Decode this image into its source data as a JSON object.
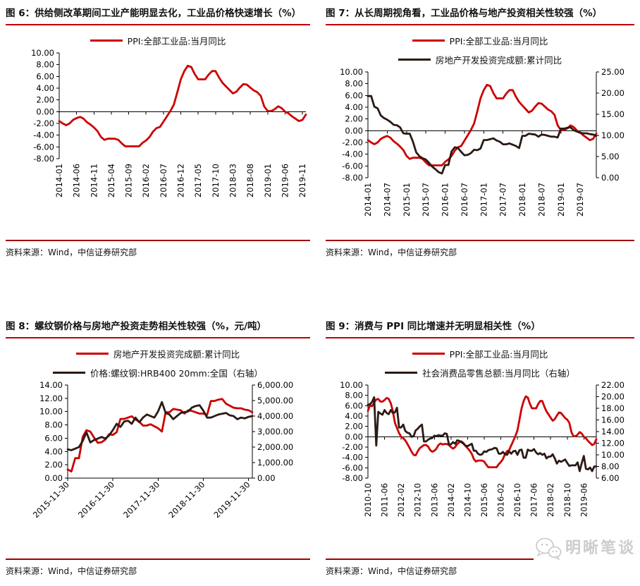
{
  "colors": {
    "series_red": "#cc0000",
    "series_black": "#2b1a14",
    "title_rule_red": "#c00000",
    "source_rule_dark_red": "#a00000",
    "axis_black": "#000000",
    "watermark_gray": "#cccccc"
  },
  "source_label": "资料来源：Wind，中信证券研究部",
  "watermark": {
    "icon": "wechat-chat-bubbles-icon",
    "text": "明晰笔谈"
  },
  "chart_data": [
    {
      "id": "fig6",
      "type": "line",
      "title": "图 6：供给侧改革期间工业产能明显去化，工业品价格快速增长（%）",
      "legend": [
        {
          "label": "PPI:全部工业品:当月同比",
          "color": "#cc0000"
        }
      ],
      "left_axis": {
        "min": -8,
        "max": 10,
        "tick_labels": [
          "10.00",
          "8.00",
          "6.00",
          "4.00",
          "2.00",
          "0.00",
          "-2.00",
          "-4.00",
          "-6.00",
          "-8.00"
        ]
      },
      "right_axis": null,
      "x_axis": {
        "start": "2014-01",
        "end": "2019-12",
        "freq": "monthly",
        "label_rotation": -90,
        "tick_indices": [
          0,
          5,
          10,
          15,
          20,
          25,
          30,
          35,
          40,
          45,
          50,
          55,
          60,
          65,
          70
        ],
        "tick_labels": [
          "2014-01",
          "2014-06",
          "2014-11",
          "2015-04",
          "2015-09",
          "2016-02",
          "2016-07",
          "2016-12",
          "2017-05",
          "2017-10",
          "2018-03",
          "2018-08",
          "2019-01",
          "2019-06",
          "2019-11"
        ]
      },
      "series": [
        {
          "name": "PPI:全部工业品:当月同比",
          "axis": "left",
          "color": "#cc0000",
          "values": [
            -1.6,
            -2.0,
            -2.3,
            -2.0,
            -1.4,
            -1.1,
            -0.9,
            -1.2,
            -1.8,
            -2.2,
            -2.7,
            -3.3,
            -4.3,
            -4.8,
            -4.6,
            -4.6,
            -4.6,
            -4.8,
            -5.4,
            -5.9,
            -5.9,
            -5.9,
            -5.9,
            -5.9,
            -5.3,
            -4.9,
            -4.3,
            -3.4,
            -2.8,
            -2.6,
            -1.7,
            -0.8,
            0.1,
            1.2,
            3.3,
            5.5,
            6.9,
            7.8,
            7.6,
            6.4,
            5.5,
            5.5,
            5.5,
            6.3,
            6.9,
            6.9,
            5.8,
            4.9,
            4.3,
            3.7,
            3.1,
            3.4,
            4.1,
            4.7,
            4.6,
            4.1,
            3.6,
            3.3,
            2.7,
            0.9,
            0.1,
            0.1,
            0.4,
            0.9,
            0.6,
            0.0,
            -0.3,
            -0.8,
            -1.2,
            -1.6,
            -1.4,
            -0.5
          ]
        }
      ]
    },
    {
      "id": "fig7",
      "type": "line",
      "title": "图 7：从长周期视角看，工业品价格与地产投资相关性较强（%）",
      "legend": [
        {
          "label": "PPI:全部工业品:当月同比",
          "color": "#cc0000"
        },
        {
          "label": "房地产开发投资完成额:累计同比",
          "color": "#2b1a14"
        }
      ],
      "left_axis": {
        "min": -8,
        "max": 10,
        "tick_labels": [
          "10.00",
          "8.00",
          "6.00",
          "4.00",
          "2.00",
          "0.00",
          "-2.00",
          "-4.00",
          "-6.00",
          "-8.00"
        ]
      },
      "right_axis": {
        "min": 0,
        "max": 25,
        "tick_labels": [
          "25.00",
          "20.00",
          "15.00",
          "10.00",
          "5.00",
          "0.00"
        ]
      },
      "x_axis": {
        "start": "2014-01",
        "end": "2019-12",
        "freq": "monthly",
        "label_rotation": -90,
        "tick_indices": [
          0,
          6,
          12,
          18,
          24,
          30,
          36,
          42,
          48,
          54,
          60,
          66
        ],
        "tick_labels": [
          "2014-01",
          "2014-07",
          "2015-01",
          "2015-07",
          "2016-01",
          "2016-07",
          "2017-01",
          "2017-07",
          "2018-01",
          "2018-07",
          "2019-01",
          "2019-07"
        ]
      },
      "series": [
        {
          "name": "PPI:全部工业品:当月同比",
          "axis": "left",
          "color": "#cc0000",
          "values": [
            -1.6,
            -2.0,
            -2.3,
            -2.0,
            -1.4,
            -1.1,
            -0.9,
            -1.2,
            -1.8,
            -2.2,
            -2.7,
            -3.3,
            -4.3,
            -4.8,
            -4.6,
            -4.6,
            -4.6,
            -4.8,
            -5.4,
            -5.9,
            -5.9,
            -5.9,
            -5.9,
            -5.9,
            -5.3,
            -4.9,
            -4.3,
            -3.4,
            -2.8,
            -2.6,
            -1.7,
            -0.8,
            0.1,
            1.2,
            3.3,
            5.5,
            6.9,
            7.8,
            7.6,
            6.4,
            5.5,
            5.5,
            5.5,
            6.3,
            6.9,
            6.9,
            5.8,
            4.9,
            4.3,
            3.7,
            3.1,
            3.4,
            4.1,
            4.7,
            4.6,
            4.1,
            3.6,
            3.3,
            2.7,
            0.9,
            0.1,
            0.1,
            0.4,
            0.9,
            0.6,
            0.0,
            -0.3,
            -0.8,
            -1.2,
            -1.6,
            -1.4,
            -0.5
          ]
        },
        {
          "name": "房地产开发投资完成额:累计同比",
          "axis": "right",
          "color": "#2b1a14",
          "values": [
            19.3,
            19.3,
            16.8,
            16.4,
            14.7,
            14.1,
            13.7,
            13.2,
            12.5,
            12.4,
            11.9,
            10.5,
            10.4,
            10.4,
            8.5,
            6.0,
            5.1,
            4.6,
            4.3,
            3.5,
            2.6,
            2.0,
            1.3,
            1.0,
            3.0,
            3.0,
            6.2,
            7.2,
            7.0,
            6.1,
            5.3,
            5.4,
            5.8,
            6.6,
            6.5,
            6.9,
            8.9,
            8.9,
            9.1,
            9.3,
            8.8,
            8.5,
            7.9,
            7.9,
            8.1,
            7.8,
            7.5,
            7.0,
            9.9,
            9.9,
            10.4,
            10.3,
            10.2,
            9.7,
            10.2,
            10.1,
            9.9,
            9.7,
            9.7,
            9.5,
            11.6,
            11.6,
            11.8,
            11.9,
            11.2,
            10.9,
            10.6,
            10.5,
            10.5,
            10.3,
            10.2,
            9.9
          ]
        }
      ]
    },
    {
      "id": "fig8",
      "type": "line",
      "title": "图 8：螺纹钢价格与房地产投资走势相关性较强（%，元/吨）",
      "legend": [
        {
          "label": "房地产开发投资完成额:累计同比",
          "color": "#cc0000"
        },
        {
          "label": "价格:螺纹钢:HRB400 20mm:全国（右轴）",
          "color": "#2b1a14"
        }
      ],
      "left_axis": {
        "min": 0,
        "max": 14,
        "tick_labels": [
          "14.00",
          "12.00",
          "10.00",
          "8.00",
          "6.00",
          "4.00",
          "2.00",
          "0.00"
        ]
      },
      "right_axis": {
        "min": 0,
        "max": 6000,
        "tick_labels": [
          "6,000.00",
          "5,000.00",
          "4,000.00",
          "3,000.00",
          "2,000.00",
          "1,000.00",
          "0.00"
        ]
      },
      "x_axis": {
        "start": "2015-11-30",
        "end": "2019-12-31",
        "freq": "monthly",
        "label_rotation": -45,
        "tick_indices": [
          0,
          12,
          24,
          36,
          48
        ],
        "tick_labels": [
          "2015-11-30",
          "2016-11-30",
          "2017-11-30",
          "2018-11-30",
          "2019-11-30"
        ]
      },
      "series": [
        {
          "name": "房地产开发投资完成额:累计同比",
          "axis": "left",
          "color": "#cc0000",
          "values": [
            1.3,
            1.0,
            3.0,
            3.0,
            6.2,
            7.2,
            7.0,
            6.1,
            5.3,
            5.4,
            5.8,
            6.6,
            6.5,
            6.9,
            8.9,
            8.9,
            9.1,
            9.3,
            8.8,
            8.5,
            7.9,
            7.9,
            8.1,
            7.8,
            7.5,
            7.0,
            9.9,
            9.9,
            10.4,
            10.3,
            10.2,
            9.7,
            10.2,
            10.1,
            9.9,
            9.7,
            9.7,
            9.5,
            11.6,
            11.6,
            11.8,
            11.9,
            11.2,
            10.9,
            10.6,
            10.5,
            10.5,
            10.3,
            10.2,
            9.9
          ]
        },
        {
          "name": "价格:螺纹钢:HRB400 20mm:全国（右轴）",
          "axis": "right",
          "color": "#2b1a14",
          "values": [
            1850,
            1800,
            1900,
            2000,
            2400,
            2950,
            2300,
            2450,
            2550,
            2650,
            2550,
            2750,
            3100,
            3500,
            3300,
            3650,
            3700,
            3500,
            3900,
            3600,
            3900,
            4100,
            4000,
            3900,
            4300,
            4900,
            4200,
            4100,
            3800,
            4000,
            4200,
            4250,
            4300,
            4550,
            4650,
            4700,
            4350,
            3900,
            3900,
            4000,
            4100,
            4150,
            4200,
            4050,
            4000,
            3800,
            3900,
            3850,
            3950,
            4000
          ]
        }
      ]
    },
    {
      "id": "fig9",
      "type": "line",
      "title": "图 9：消费与 PPI 同比增速并无明显相关性（%）",
      "legend": [
        {
          "label": "PPI:全部工业品:当月同比",
          "color": "#cc0000"
        },
        {
          "label": "社会消费品零售总额:当月同比（右轴）",
          "color": "#2b1a14"
        }
      ],
      "left_axis": {
        "min": -8,
        "max": 10,
        "tick_labels": [
          "10.00",
          "8.00",
          "6.00",
          "4.00",
          "2.00",
          "0.00",
          "-2.00",
          "-4.00",
          "-6.00",
          "-8.00"
        ]
      },
      "right_axis": {
        "min": 6,
        "max": 22,
        "tick_labels": [
          "22.00",
          "20.00",
          "18.00",
          "16.00",
          "14.00",
          "12.00",
          "10.00",
          "8.00",
          "6.00"
        ]
      },
      "x_axis": {
        "start": "2010-10",
        "end": "2019-12",
        "freq": "monthly",
        "label_rotation": -90,
        "tick_indices": [
          0,
          8,
          16,
          24,
          32,
          40,
          48,
          56,
          64,
          72,
          80,
          88,
          96,
          104
        ],
        "tick_labels": [
          "2010-10",
          "2011-06",
          "2012-02",
          "2012-10",
          "2013-06",
          "2014-02",
          "2014-10",
          "2015-06",
          "2016-02",
          "2016-10",
          "2017-06",
          "2018-02",
          "2018-10",
          "2019-06"
        ]
      },
      "series": [
        {
          "name": "PPI:全部工业品:当月同比",
          "axis": "left",
          "color": "#cc0000",
          "values": [
            5.0,
            6.1,
            5.9,
            6.6,
            7.2,
            7.3,
            6.8,
            6.8,
            7.1,
            7.5,
            7.3,
            6.5,
            5.0,
            2.7,
            1.7,
            0.7,
            0.0,
            -0.3,
            -0.7,
            -1.4,
            -2.1,
            -2.9,
            -3.5,
            -3.6,
            -2.8,
            -2.2,
            -1.9,
            -1.6,
            -1.6,
            -1.9,
            -2.6,
            -2.9,
            -2.7,
            -2.3,
            -1.6,
            -1.3,
            -1.5,
            -1.4,
            -1.4,
            -1.6,
            -2.0,
            -2.3,
            -2.0,
            -1.4,
            -1.1,
            -0.9,
            -1.2,
            -1.8,
            -2.2,
            -2.7,
            -3.3,
            -4.3,
            -4.8,
            -4.6,
            -4.6,
            -4.6,
            -4.8,
            -5.4,
            -5.9,
            -5.9,
            -5.9,
            -5.9,
            -5.9,
            -5.3,
            -4.9,
            -4.3,
            -3.4,
            -2.8,
            -2.6,
            -1.7,
            -0.8,
            0.1,
            1.2,
            3.3,
            5.5,
            6.9,
            7.8,
            7.6,
            6.4,
            5.5,
            5.5,
            5.5,
            6.3,
            6.9,
            6.9,
            5.8,
            4.9,
            4.3,
            3.7,
            3.1,
            3.4,
            4.1,
            4.7,
            4.6,
            4.1,
            3.6,
            3.3,
            2.7,
            0.9,
            0.1,
            0.1,
            0.4,
            0.9,
            0.6,
            0.0,
            -0.3,
            -0.8,
            -1.2,
            -1.6,
            -1.4,
            -0.5
          ]
        },
        {
          "name": "社会消费品零售总额:当月同比（右轴）",
          "axis": "right",
          "color": "#2b1a14",
          "values": [
            18.6,
            18.7,
            19.1,
            19.9,
            11.6,
            17.4,
            17.1,
            16.9,
            17.7,
            17.2,
            17.0,
            17.7,
            17.2,
            17.3,
            18.1,
            14.7,
            14.7,
            15.2,
            14.1,
            13.8,
            13.7,
            13.1,
            13.2,
            14.2,
            14.5,
            14.9,
            15.2,
            12.3,
            12.3,
            12.6,
            12.8,
            12.9,
            13.3,
            13.2,
            13.4,
            13.3,
            13.3,
            13.7,
            13.6,
            11.8,
            11.8,
            12.2,
            11.9,
            12.5,
            12.4,
            12.2,
            11.9,
            11.6,
            11.5,
            11.7,
            11.9,
            10.7,
            10.7,
            10.2,
            10.0,
            10.1,
            10.6,
            10.5,
            10.8,
            10.9,
            11.0,
            11.2,
            11.1,
            10.2,
            10.2,
            10.5,
            10.1,
            10.0,
            10.6,
            10.2,
            10.6,
            10.7,
            10.0,
            10.8,
            10.9,
            9.5,
            9.5,
            10.9,
            10.7,
            10.7,
            11.0,
            10.4,
            10.1,
            10.3,
            10.0,
            10.2,
            9.4,
            9.7,
            9.7,
            10.1,
            9.4,
            8.5,
            9.0,
            8.8,
            9.0,
            9.2,
            8.6,
            8.1,
            8.2,
            8.2,
            8.2,
            8.7,
            7.2,
            8.6,
            9.8,
            7.6,
            7.5,
            7.8,
            7.2,
            8.0,
            8.0
          ]
        }
      ]
    }
  ]
}
